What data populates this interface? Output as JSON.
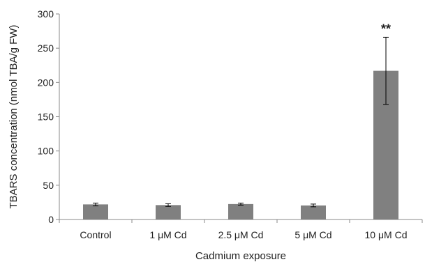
{
  "chart_data": {
    "type": "bar",
    "title": "",
    "xlabel": "Cadmium exposure",
    "ylabel": "TBARS concentration (nmol TBA/g FW)",
    "categories": [
      "Control",
      "1 μM Cd",
      "2.5 μM Cd",
      "5 μM Cd",
      "10 μM Cd"
    ],
    "values": [
      22,
      21,
      22.5,
      20.5,
      217
    ],
    "errors": [
      2,
      2,
      1.5,
      2,
      49
    ],
    "annotations": [
      "",
      "",
      "",
      "",
      "**"
    ],
    "ylim": [
      0,
      300
    ],
    "yticks": [
      0,
      50,
      100,
      150,
      200,
      250,
      300
    ],
    "grid": false,
    "bar_color": "#808080"
  }
}
